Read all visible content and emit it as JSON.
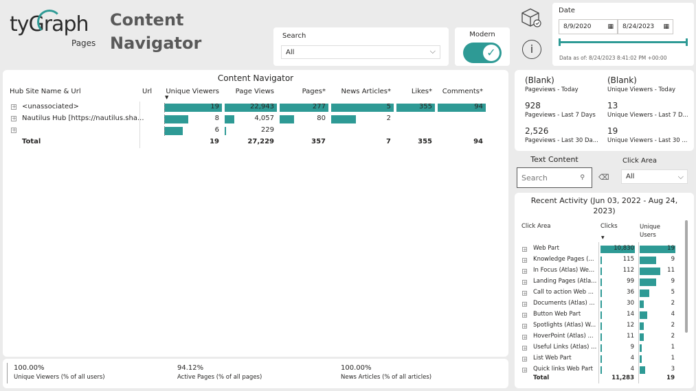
{
  "brand": {
    "logo_text": "tyGraph",
    "logo_sub": "Pages",
    "page_title_line1": "Content",
    "page_title_line2": "Navigator"
  },
  "search": {
    "label": "Search",
    "value": "All"
  },
  "modern": {
    "label": "Modern",
    "on": true
  },
  "date": {
    "label": "Date",
    "start": "8/9/2020",
    "end": "8/24/2023",
    "data_as_of": "Data as of: 8/24/2023 8:41:02 PM +00:00"
  },
  "icons": {
    "package": "package-shield-icon",
    "info": "info-icon"
  },
  "main_table": {
    "title": "Content Navigator",
    "columns": [
      "Hub Site Name & Url",
      "Url",
      "Unique Viewers",
      "Page Views",
      "Pages*",
      "News Articles*",
      "Likes*",
      "Comments*"
    ],
    "rows": [
      {
        "name": "<unassociated>",
        "viewers": "19",
        "views": "22,943",
        "pages": "277",
        "news": "5",
        "likes": "355",
        "comments": "94"
      },
      {
        "name": "Nautilus Hub [https://nautilus.sha...",
        "viewers": "8",
        "views": "4,057",
        "pages": "80",
        "news": "2",
        "likes": "",
        "comments": ""
      },
      {
        "name": "",
        "viewers": "6",
        "views": "229",
        "pages": "",
        "news": "",
        "likes": "",
        "comments": ""
      }
    ],
    "total": {
      "label": "Total",
      "viewers": "19",
      "views": "27,229",
      "pages": "357",
      "news": "7",
      "likes": "355",
      "comments": "94"
    },
    "fractions": {
      "viewers": [
        1.0,
        0.42,
        0.32
      ],
      "views": [
        1.0,
        0.18,
        0.01
      ],
      "pages": [
        1.0,
        0.29,
        0
      ],
      "news": [
        1.0,
        0.4,
        0
      ],
      "likes": [
        1.0,
        0,
        0
      ],
      "comments": [
        1.0,
        0,
        0
      ]
    }
  },
  "kpis": [
    {
      "value": "(Blank)",
      "label": "Pageviews - Today"
    },
    {
      "value": "(Blank)",
      "label": "Unique Viewers - Today"
    },
    {
      "value": "928",
      "label": "Pageviews - Last 7 Days"
    },
    {
      "value": "13",
      "label": "Unique Viewers - Last 7 D..."
    },
    {
      "value": "2,526",
      "label": "Pageviews - Last 30 Da..."
    },
    {
      "value": "19",
      "label": "Unique Viewers - Last 30 ..."
    }
  ],
  "text_content": {
    "label": "Text Content",
    "placeholder": "Search"
  },
  "click_area": {
    "label": "Click Area",
    "value": "All"
  },
  "recent": {
    "title_line1": "Recent Activity (Jun 03, 2022 - Aug 24,",
    "title_line2": "2023)",
    "columns": [
      "Click Area",
      "Clicks",
      "Unique Users"
    ],
    "rows": [
      {
        "name": "Web Part",
        "clicks": "10,830",
        "users": "19",
        "cf": 1.0,
        "uf": 1.0
      },
      {
        "name": "Knowledge Pages (...",
        "clicks": "115",
        "users": "9",
        "cf": 0.011,
        "uf": 0.47
      },
      {
        "name": "In Focus (Atlas) We...",
        "clicks": "112",
        "users": "11",
        "cf": 0.01,
        "uf": 0.58
      },
      {
        "name": "Landing Pages (Atla...",
        "clicks": "99",
        "users": "9",
        "cf": 0.009,
        "uf": 0.47
      },
      {
        "name": "Call to action Web ...",
        "clicks": "36",
        "users": "5",
        "cf": 0.003,
        "uf": 0.26
      },
      {
        "name": "Documents (Atlas) ...",
        "clicks": "30",
        "users": "2",
        "cf": 0.003,
        "uf": 0.11
      },
      {
        "name": "Button Web Part",
        "clicks": "14",
        "users": "4",
        "cf": 0.001,
        "uf": 0.21
      },
      {
        "name": "Spotlights (Atlas) W...",
        "clicks": "12",
        "users": "2",
        "cf": 0.001,
        "uf": 0.11
      },
      {
        "name": "HoverPoint (Atlas) ...",
        "clicks": "11",
        "users": "2",
        "cf": 0.001,
        "uf": 0.11
      },
      {
        "name": "Useful Links (Atlas) ...",
        "clicks": "9",
        "users": "1",
        "cf": 0.001,
        "uf": 0.05
      },
      {
        "name": "List Web Part",
        "clicks": "4",
        "users": "1",
        "cf": 0.0004,
        "uf": 0.05
      },
      {
        "name": "Quick links Web Part",
        "clicks": "4",
        "users": "3",
        "cf": 0.0004,
        "uf": 0.16
      }
    ],
    "total": {
      "label": "Total",
      "clicks": "11,283",
      "users": "19"
    }
  },
  "footer": [
    {
      "value": "100.00%",
      "label": "Unique Viewers (% of all users)"
    },
    {
      "value": "94.12%",
      "label": "Active Pages (% of all pages)"
    },
    {
      "value": "100.00%",
      "label": "News Articles (% of all articles)"
    }
  ],
  "colors": {
    "accent": "#2e9a95",
    "background": "#ebebeb",
    "card": "#ffffff"
  }
}
